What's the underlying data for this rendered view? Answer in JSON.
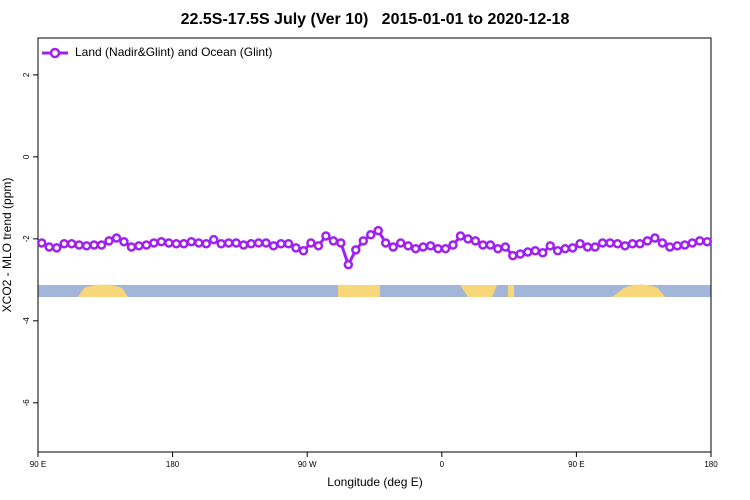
{
  "chart_data": {
    "type": "line",
    "title": "22.5S-17.5S July (Ver 10)   2015-01-01 to 2020-12-18",
    "xlabel": "Longitude (deg E)",
    "ylabel": "XCO2 - MLO trend (ppm)",
    "xlim": [
      90,
      540
    ],
    "ylim": [
      -7.2,
      2.9
    ],
    "xticks": [
      {
        "value": 90,
        "label": "90 E"
      },
      {
        "value": 180,
        "label": "180"
      },
      {
        "value": 270,
        "label": "90 W"
      },
      {
        "value": 360,
        "label": "0"
      },
      {
        "value": 450,
        "label": "90 E"
      },
      {
        "value": 540,
        "label": "180"
      }
    ],
    "yticks": [
      2,
      0,
      -2,
      -4,
      -6
    ],
    "legend": "top-left",
    "x": [
      92.5,
      97.5,
      102.5,
      107.5,
      112.5,
      117.5,
      122.5,
      127.5,
      132.5,
      137.5,
      142.5,
      147.5,
      152.5,
      157.5,
      162.5,
      167.5,
      172.5,
      177.5,
      182.5,
      187.5,
      192.5,
      197.5,
      202.5,
      207.5,
      212.5,
      217.5,
      222.5,
      227.5,
      232.5,
      237.5,
      242.5,
      247.5,
      252.5,
      257.5,
      262.5,
      267.5,
      272.5,
      277.5,
      282.5,
      287.5,
      292.5,
      297.5,
      302.5,
      307.5,
      312.5,
      317.5,
      322.5,
      327.5,
      332.5,
      337.5,
      342.5,
      347.5,
      352.5,
      357.5,
      362.5,
      367.5,
      372.5,
      377.5,
      382.5,
      387.5,
      392.5,
      397.5,
      402.5,
      407.5,
      412.5,
      417.5,
      422.5,
      427.5,
      432.5,
      437.5,
      442.5,
      447.5,
      452.5,
      457.5,
      462.5,
      467.5,
      472.5,
      477.5,
      482.5,
      487.5,
      492.5,
      497.5,
      502.5,
      507.5,
      512.5,
      517.5,
      522.5,
      527.5,
      532.5,
      537.5
    ],
    "series": [
      {
        "name": "Land (Nadir&Glint) and Ocean (Glint)",
        "color": "#a020f0",
        "values": [
          -2.1,
          -2.2,
          -2.22,
          -2.12,
          -2.12,
          -2.15,
          -2.17,
          -2.15,
          -2.15,
          -2.05,
          -1.98,
          -2.07,
          -2.2,
          -2.17,
          -2.15,
          -2.1,
          -2.07,
          -2.1,
          -2.12,
          -2.12,
          -2.07,
          -2.1,
          -2.12,
          -2.02,
          -2.12,
          -2.1,
          -2.1,
          -2.15,
          -2.12,
          -2.1,
          -2.1,
          -2.17,
          -2.12,
          -2.12,
          -2.22,
          -2.29,
          -2.1,
          -2.17,
          -1.93,
          -2.05,
          -2.1,
          -2.63,
          -2.27,
          -2.05,
          -1.9,
          -1.8,
          -2.1,
          -2.2,
          -2.1,
          -2.17,
          -2.24,
          -2.2,
          -2.17,
          -2.24,
          -2.24,
          -2.15,
          -1.93,
          -2.0,
          -2.05,
          -2.15,
          -2.15,
          -2.24,
          -2.2,
          -2.41,
          -2.37,
          -2.32,
          -2.29,
          -2.34,
          -2.17,
          -2.29,
          -2.24,
          -2.22,
          -2.12,
          -2.2,
          -2.2,
          -2.1,
          -2.1,
          -2.12,
          -2.17,
          -2.12,
          -2.12,
          -2.05,
          -1.98,
          -2.1,
          -2.2,
          -2.17,
          -2.15,
          -2.1,
          -2.05,
          -2.07
        ]
      }
    ]
  }
}
